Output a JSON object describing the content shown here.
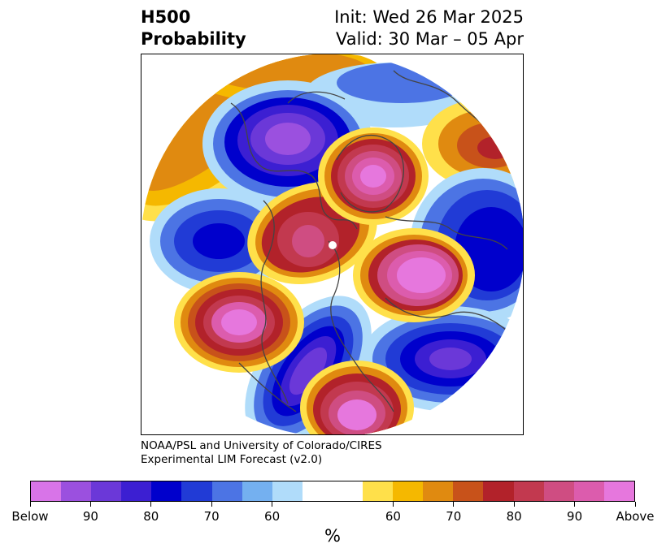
{
  "header": {
    "field_line1": "H500",
    "field_line2": "Probability",
    "init_line": "Init: Wed 26 Mar 2025",
    "valid_line": "Valid: 30 Mar – 05 Apr"
  },
  "map": {
    "projection": "north-polar-stereographic",
    "anomalies": [
      {
        "region": "Hudson Bay / NE Canada",
        "sign": "below",
        "level": 90
      },
      {
        "region": "Greenland / Arctic",
        "sign": "above",
        "level": "Above"
      },
      {
        "region": "Northern Europe",
        "sign": "below",
        "level": 80
      },
      {
        "region": "Western Russia",
        "sign": "above",
        "level": "Above"
      },
      {
        "region": "Arctic Ocean",
        "sign": "above",
        "level": 90
      },
      {
        "region": "North Pacific",
        "sign": "above",
        "level": "Above"
      },
      {
        "region": "Western United States",
        "sign": "below",
        "level": 90
      },
      {
        "region": "Southeastern United States",
        "sign": "above",
        "level": "Above"
      },
      {
        "region": "Central Asia",
        "sign": "below",
        "level": 90
      },
      {
        "region": "North Atlantic",
        "sign": "below",
        "level": 80
      }
    ]
  },
  "credit": {
    "line1": "NOAA/PSL and University of Colorado/CIRES",
    "line2": "Experimental LIM Forecast (v2.0)"
  },
  "colorbar": {
    "colors": [
      "#d874e8",
      "#9b50df",
      "#6b38d8",
      "#3c1fd2",
      "#0000cc",
      "#213bd6",
      "#4c74e4",
      "#74b0f0",
      "#b0dcfa",
      "#ffffff",
      "#ffe04a",
      "#f5b800",
      "#e08a10",
      "#c8521a",
      "#b2222a",
      "#c2394f",
      "#cf4d82",
      "#dc5cad",
      "#e677dd"
    ],
    "labels": [
      "Below",
      "90",
      "80",
      "70",
      "60",
      "60",
      "70",
      "80",
      "90",
      "Above"
    ],
    "unit": "%"
  }
}
